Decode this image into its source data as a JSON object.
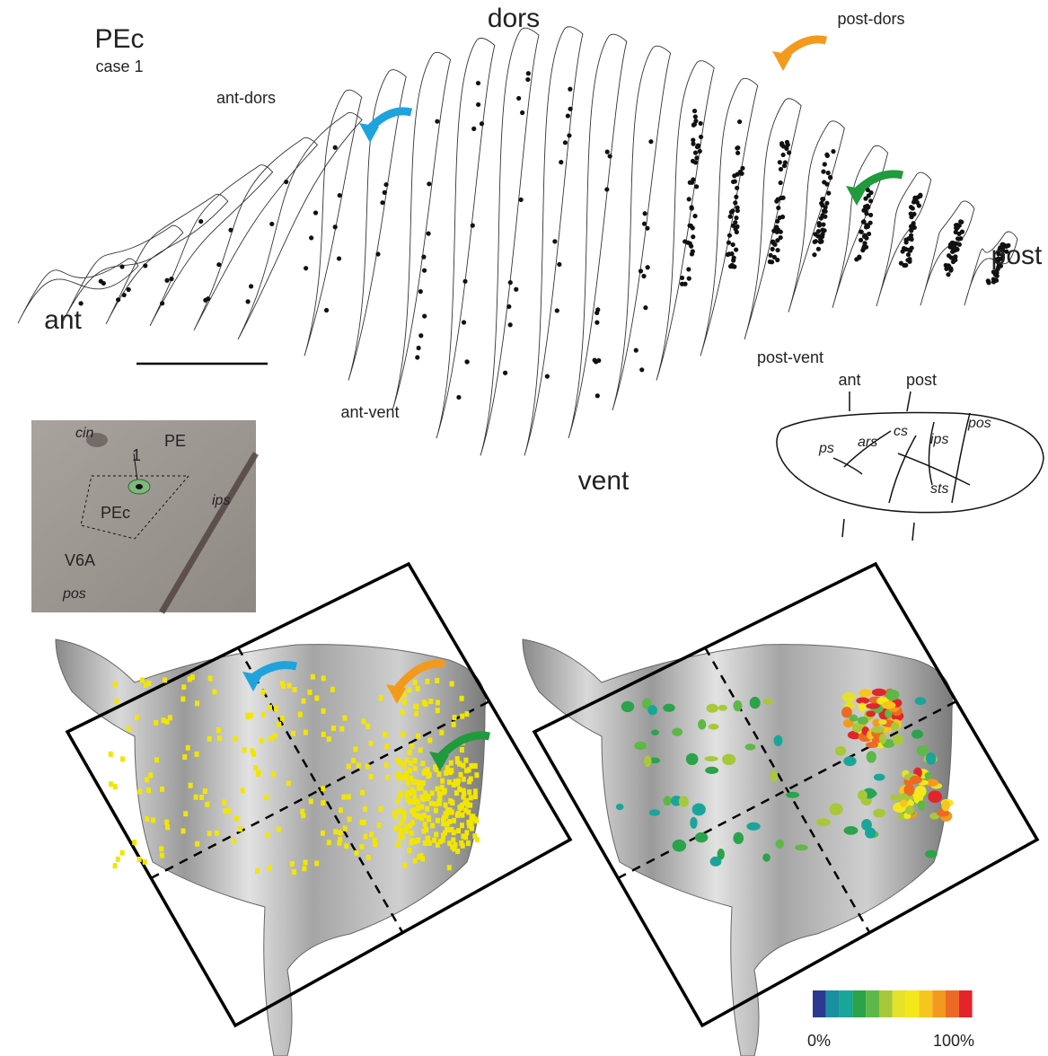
{
  "header": {
    "title": "PEc",
    "subtitle": "case 1"
  },
  "sections": {
    "dors": "dors",
    "post_dors": "post-dors",
    "ant_dors": "ant-dors",
    "post": "post",
    "ant": "ant",
    "vent": "vent",
    "ant_vent": "ant-vent",
    "post_vent": "post-vent"
  },
  "brain_inset": {
    "ant": "ant",
    "post": "post",
    "sulci": [
      "ps",
      "ars",
      "cs",
      "ips",
      "pos",
      "sts"
    ]
  },
  "photo_inset": {
    "cin": "cin",
    "pe": "PE",
    "site": "1",
    "pec": "PEc",
    "ips": "ips",
    "v6a": "V6A",
    "pos": "pos"
  },
  "colorbar": {
    "min_label": "0%",
    "max_label": "100%",
    "colors": [
      "#2b3a8f",
      "#1a8fa0",
      "#1aa59a",
      "#2aa34a",
      "#5db847",
      "#a8c83a",
      "#e6e12a",
      "#f5e81a",
      "#f7c61e",
      "#f39a1d",
      "#ec6a23",
      "#e3252b"
    ]
  }
}
